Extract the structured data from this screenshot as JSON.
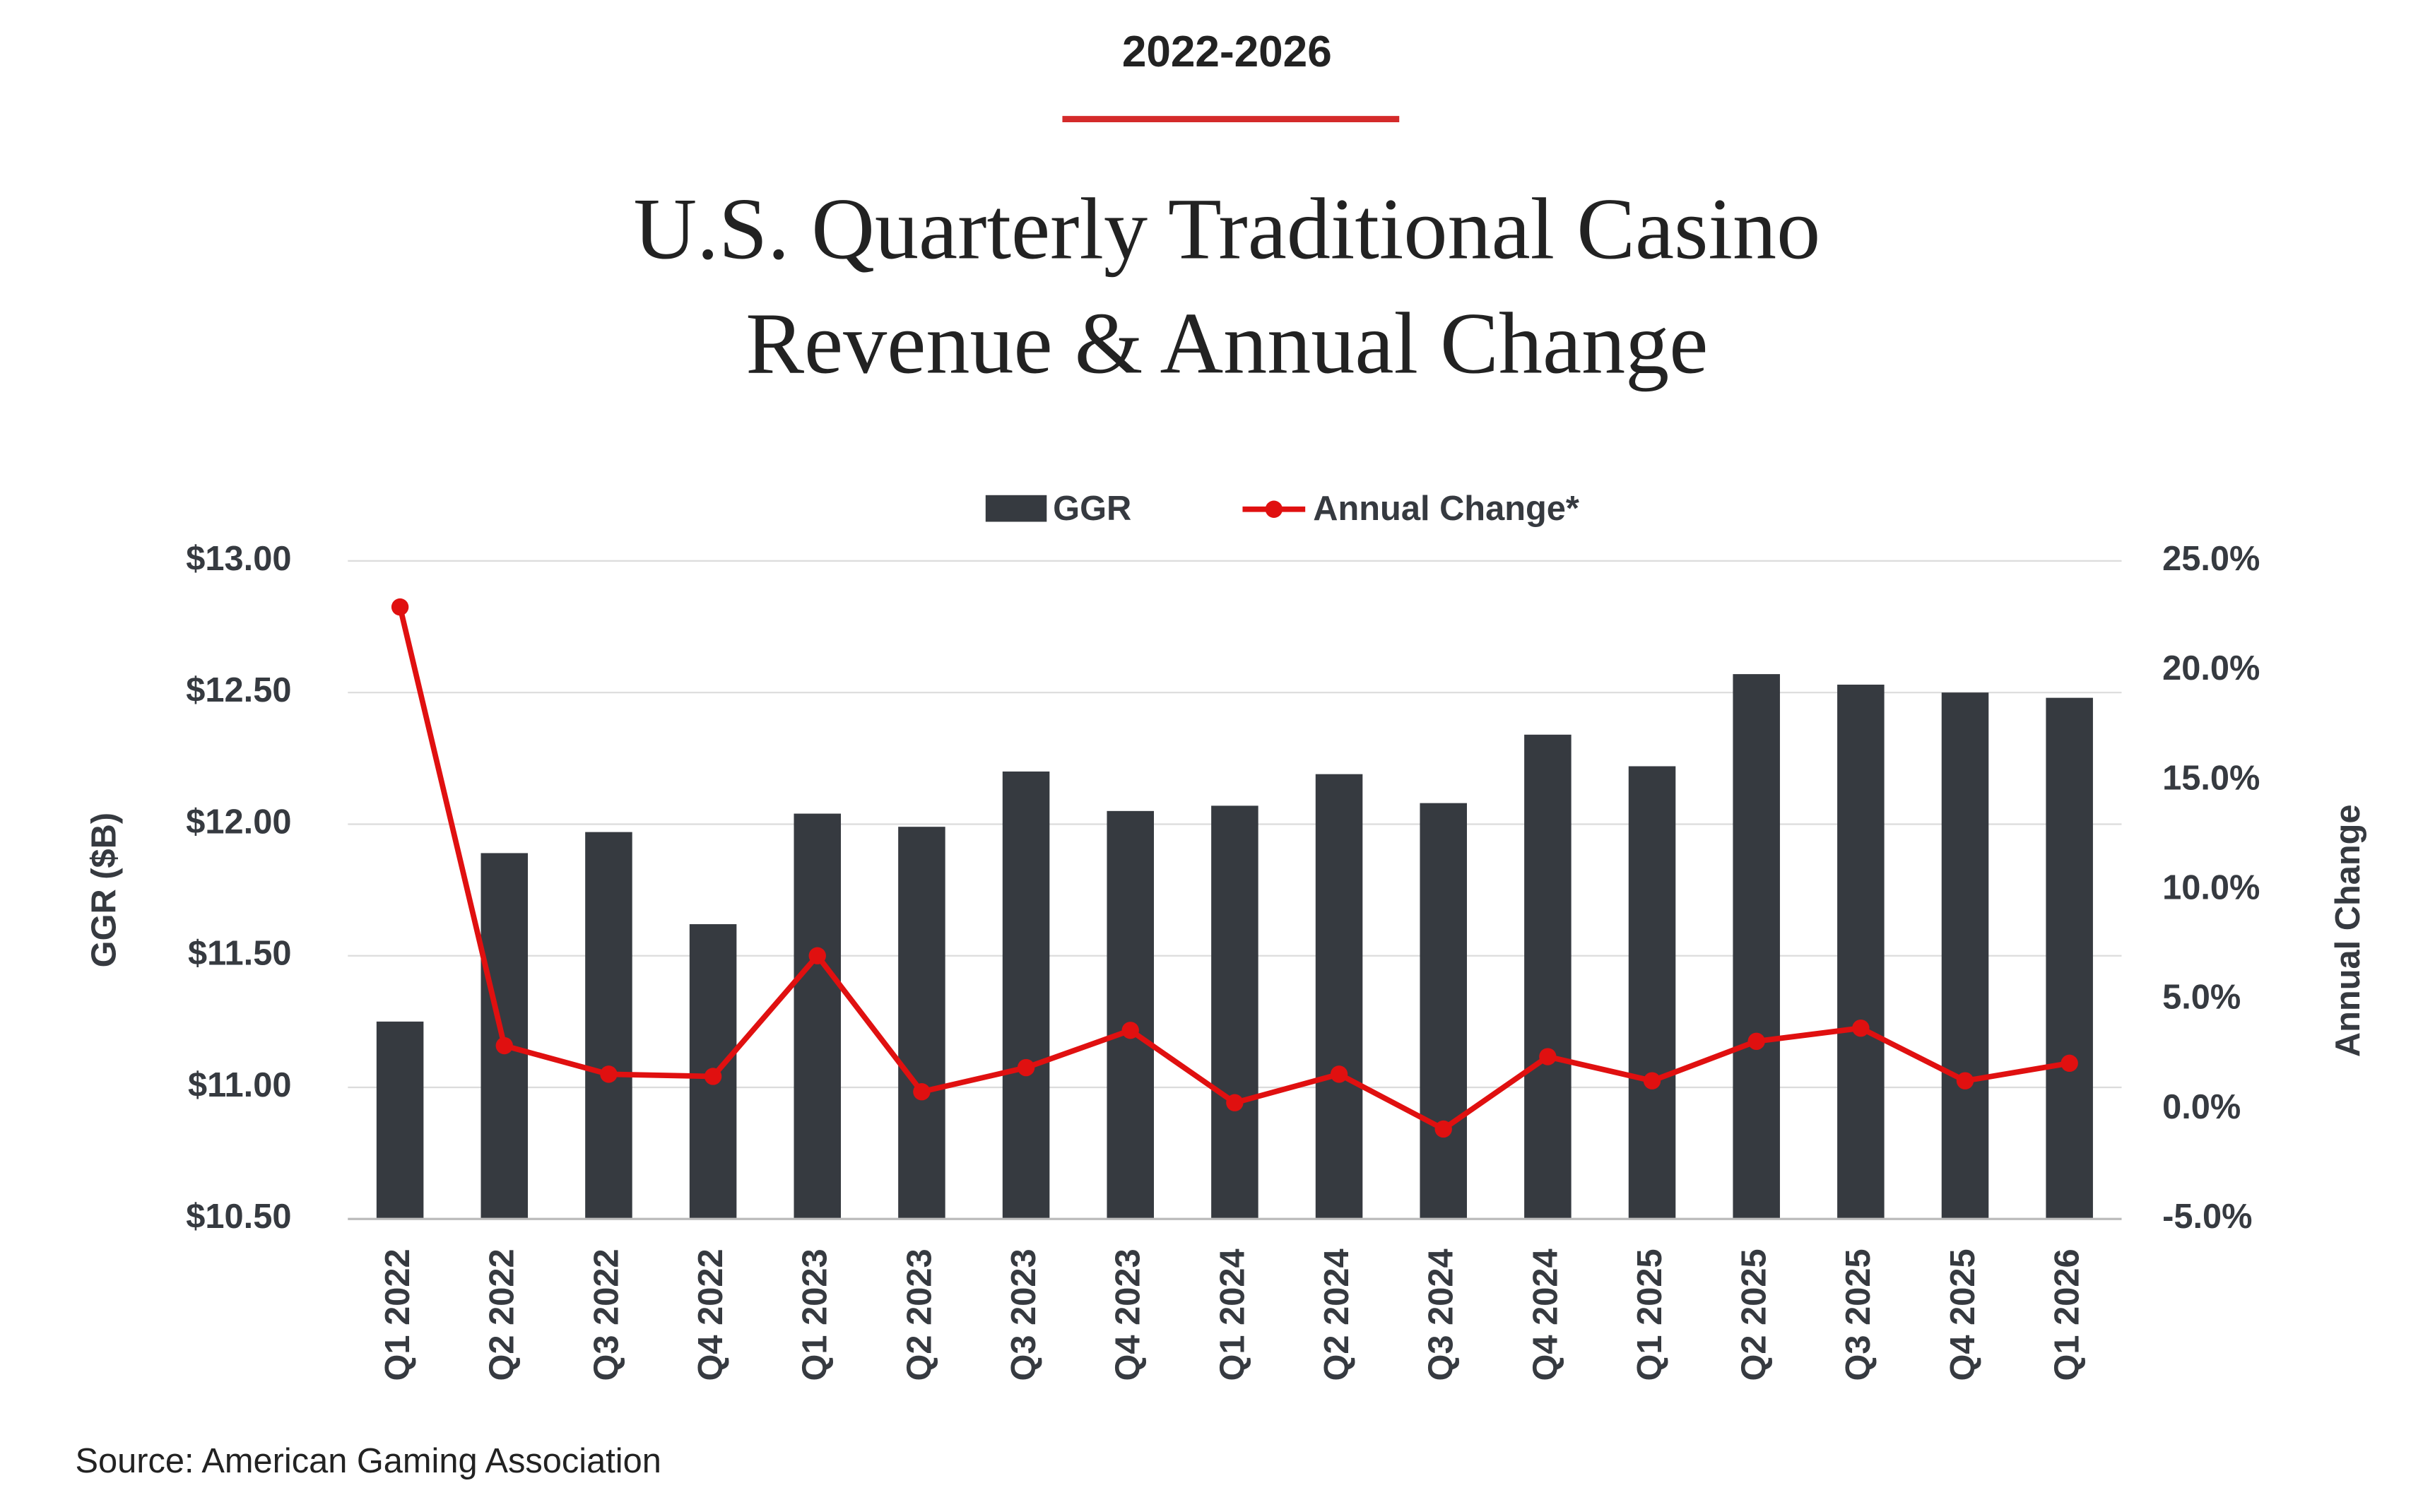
{
  "chart_data": {
    "type": "bar",
    "supertitle": "2022-2026",
    "title": [
      "U.S. Quarterly Traditional Casino",
      "Revenue & Annual Change"
    ],
    "y_label": "GGR ($B)",
    "y2_label": "Annual Change",
    "source": "Source: American Gaming Association",
    "categories": [
      "Q1 2022",
      "Q2 2022",
      "Q3 2022",
      "Q4 2022",
      "Q1 2023",
      "Q2 2023",
      "Q3 2023",
      "Q4 2023",
      "Q1 2024",
      "Q2 2024",
      "Q3 2024",
      "Q4 2024",
      "Q1 2025",
      "Q2 2025",
      "Q3 2025",
      "Q4 2025",
      "Q1 2026"
    ],
    "series": [
      {
        "name": "GGR",
        "type": "bar",
        "color": "#363a40",
        "values": [
          11.25,
          11.89,
          11.97,
          11.62,
          12.04,
          11.99,
          12.2,
          12.05,
          12.07,
          12.19,
          12.08,
          12.34,
          12.22,
          12.57,
          12.53,
          12.5,
          12.48
        ]
      },
      {
        "name": "Annual Change*",
        "type": "line",
        "axis": "y2",
        "color": "#e01010",
        "values": [
          22.9,
          2.9,
          1.6,
          1.5,
          7.0,
          0.8,
          1.9,
          3.6,
          0.3,
          1.6,
          -0.9,
          2.4,
          1.3,
          3.1,
          3.7,
          1.3,
          2.1
        ]
      }
    ],
    "ylim": [
      10.5,
      13
    ],
    "yticks": [
      {
        "value": 10.5,
        "label": "$10.50"
      },
      {
        "value": 11,
        "label": "$11.00"
      },
      {
        "value": 11.5,
        "label": "$11.50"
      },
      {
        "value": 12,
        "label": "$12.00"
      },
      {
        "value": 12.5,
        "label": "$12.50"
      },
      {
        "value": 13,
        "label": "$13.00"
      }
    ],
    "y2lim": [
      -5,
      25
    ],
    "y2ticks": [
      {
        "value": -5,
        "label": "-5.0%"
      },
      {
        "value": 0,
        "label": "0.0%"
      },
      {
        "value": 5,
        "label": "5.0%"
      },
      {
        "value": 10,
        "label": "10.0%"
      },
      {
        "value": 15,
        "label": "15.0%"
      },
      {
        "value": 20,
        "label": "20.0%"
      },
      {
        "value": 25,
        "label": "25.0%"
      }
    ],
    "grid": true,
    "legend": "top"
  }
}
